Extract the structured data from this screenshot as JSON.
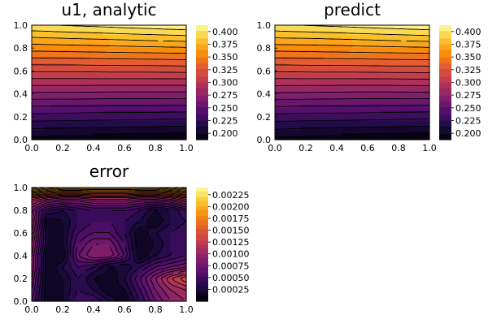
{
  "chart_data": [
    {
      "type": "heatmap",
      "subtype": "filled-contour",
      "title": "u1, analytic",
      "xlim": [
        0,
        1
      ],
      "ylim": [
        0,
        1
      ],
      "x_ticks": [
        "0.0",
        "0.2",
        "0.4",
        "0.6",
        "0.8",
        "1.0"
      ],
      "y_ticks": [
        "0.0",
        "0.2",
        "0.4",
        "0.6",
        "0.8",
        "1.0"
      ],
      "colorbar": {
        "range": [
          0.1875,
          0.4125
        ],
        "ticks": [
          0.2,
          0.225,
          0.25,
          0.275,
          0.3,
          0.325,
          0.35,
          0.375,
          0.4
        ],
        "tick_labels": [
          "0.200",
          "0.225",
          "0.250",
          "0.275",
          "0.300",
          "0.325",
          "0.350",
          "0.375",
          "0.400"
        ]
      },
      "contour_levels": [
        0.2,
        0.2125,
        0.225,
        0.2375,
        0.25,
        0.2625,
        0.275,
        0.2875,
        0.3,
        0.3125,
        0.325,
        0.3375,
        0.35,
        0.3625,
        0.375,
        0.3875,
        0.4
      ],
      "field": {
        "x": [
          0,
          0.25,
          0.5,
          0.75,
          1
        ],
        "y": [
          0,
          0.125,
          0.25,
          0.375,
          0.5,
          0.625,
          0.75,
          0.875,
          1
        ],
        "z": [
          [
            0.195,
            0.193,
            0.191,
            0.189,
            0.187
          ],
          [
            0.218,
            0.217,
            0.216,
            0.215,
            0.214
          ],
          [
            0.242,
            0.241,
            0.24,
            0.24,
            0.239
          ],
          [
            0.267,
            0.267,
            0.266,
            0.266,
            0.266
          ],
          [
            0.293,
            0.293,
            0.293,
            0.293,
            0.293
          ],
          [
            0.319,
            0.319,
            0.32,
            0.32,
            0.321
          ],
          [
            0.345,
            0.346,
            0.347,
            0.348,
            0.349
          ],
          [
            0.371,
            0.373,
            0.375,
            0.377,
            0.379
          ],
          [
            0.398,
            0.401,
            0.404,
            0.407,
            0.41
          ]
        ]
      }
    },
    {
      "type": "heatmap",
      "subtype": "filled-contour",
      "title": "predict",
      "xlim": [
        0,
        1
      ],
      "ylim": [
        0,
        1
      ],
      "x_ticks": [
        "0.0",
        "0.2",
        "0.4",
        "0.6",
        "0.8",
        "1.0"
      ],
      "y_ticks": [
        "0.0",
        "0.2",
        "0.4",
        "0.6",
        "0.8",
        "1.0"
      ],
      "colorbar": {
        "range": [
          0.1875,
          0.4125
        ],
        "ticks": [
          0.2,
          0.225,
          0.25,
          0.275,
          0.3,
          0.325,
          0.35,
          0.375,
          0.4
        ],
        "tick_labels": [
          "0.200",
          "0.225",
          "0.250",
          "0.275",
          "0.300",
          "0.325",
          "0.350",
          "0.375",
          "0.400"
        ]
      },
      "contour_levels": [
        0.2,
        0.2125,
        0.225,
        0.2375,
        0.25,
        0.2625,
        0.275,
        0.2875,
        0.3,
        0.3125,
        0.325,
        0.3375,
        0.35,
        0.3625,
        0.375,
        0.3875,
        0.4
      ],
      "field": {
        "x": [
          0,
          0.25,
          0.5,
          0.75,
          1
        ],
        "y": [
          0,
          0.125,
          0.25,
          0.375,
          0.5,
          0.625,
          0.75,
          0.875,
          1
        ],
        "z": [
          [
            0.196,
            0.194,
            0.191,
            0.189,
            0.187
          ],
          [
            0.219,
            0.217,
            0.216,
            0.215,
            0.214
          ],
          [
            0.242,
            0.241,
            0.241,
            0.24,
            0.239
          ],
          [
            0.268,
            0.267,
            0.266,
            0.266,
            0.266
          ],
          [
            0.293,
            0.293,
            0.293,
            0.293,
            0.294
          ],
          [
            0.319,
            0.32,
            0.32,
            0.321,
            0.321
          ],
          [
            0.345,
            0.346,
            0.347,
            0.348,
            0.349
          ],
          [
            0.372,
            0.373,
            0.375,
            0.377,
            0.379
          ],
          [
            0.398,
            0.401,
            0.404,
            0.407,
            0.41
          ]
        ]
      }
    },
    {
      "type": "heatmap",
      "subtype": "filled-contour",
      "title": "error",
      "xlim": [
        0,
        1
      ],
      "ylim": [
        0,
        1
      ],
      "x_ticks": [
        "0.0",
        "0.2",
        "0.4",
        "0.6",
        "0.8",
        "1.0"
      ],
      "y_ticks": [
        "0.0",
        "0.2",
        "0.4",
        "0.6",
        "0.8",
        "1.0"
      ],
      "colorbar": {
        "range": [
          0,
          0.0024
        ],
        "ticks": [
          0.00025,
          0.0005,
          0.00075,
          0.001,
          0.00125,
          0.0015,
          0.00175,
          0.002,
          0.00225
        ],
        "tick_labels": [
          "0.00025",
          "0.00050",
          "0.00075",
          "0.00100",
          "0.00125",
          "0.00150",
          "0.00175",
          "0.00200",
          "0.00225"
        ]
      },
      "contour_levels": [
        0.0001,
        0.0002,
        0.0003,
        0.0004,
        0.0005,
        0.0006,
        0.0007,
        0.0008,
        0.0009,
        0.001,
        0.0011,
        0.0012,
        0.0013,
        0.0014,
        0.0015,
        0.0016,
        0.0017,
        0.0018,
        0.0019,
        0.002,
        0.0021,
        0.0022,
        0.0023
      ],
      "field": {
        "x": [
          0,
          0.1,
          0.2,
          0.3,
          0.4,
          0.5,
          0.6,
          0.7,
          0.8,
          0.9,
          1
        ],
        "y": [
          0,
          0.1,
          0.2,
          0.3,
          0.4,
          0.5,
          0.6,
          0.7,
          0.8,
          0.9,
          1
        ],
        "z": [
          [
            0.0006,
            0.0001,
            0.0002,
            0.0005,
            0.0005,
            0.0003,
            0.0001,
            0.0004,
            0.0007,
            0.0009,
            0.001
          ],
          [
            0.0007,
            0.0001,
            0.0002,
            0.0004,
            0.0003,
            0.0001,
            0.0002,
            0.0005,
            0.0008,
            0.001,
            0.0011
          ],
          [
            0.0008,
            0.0001,
            0.0002,
            0.0004,
            0.0002,
            0.0001,
            0.0003,
            0.0006,
            0.0009,
            0.0012,
            0.0014
          ],
          [
            0.0009,
            0.0001,
            0.0003,
            0.0005,
            0.0004,
            0.0002,
            0.0002,
            0.0004,
            0.0006,
            0.0007,
            0.0008
          ],
          [
            0.0009,
            0.0001,
            0.0001,
            0.0007,
            0.0009,
            0.0009,
            0.0006,
            0.0001,
            0.0003,
            0.0004,
            0.0005
          ],
          [
            0.001,
            0.0002,
            0.0002,
            0.0006,
            0.0008,
            0.0008,
            0.0005,
            0.0001,
            0.0002,
            0.0004,
            0.0005
          ],
          [
            0.0011,
            0.0002,
            0.0002,
            0.0005,
            0.0006,
            0.0006,
            0.0004,
            0.0001,
            0.0003,
            0.0004,
            0.0005
          ],
          [
            0.001,
            0.0001,
            0.0002,
            0.0004,
            0.0005,
            0.0005,
            0.0004,
            0.0003,
            0.0001,
            0.0003,
            0.0004
          ],
          [
            0.0008,
            0.0004,
            0.0003,
            0.0004,
            0.0005,
            0.0005,
            0.0005,
            0.0004,
            0.0002,
            0.0003,
            0.0005
          ],
          [
            0.0012,
            0.001,
            0.0009,
            0.0009,
            0.001,
            0.001,
            0.001,
            0.0009,
            0.0009,
            0.001,
            0.0012
          ],
          [
            0.0024,
            0.0022,
            0.0021,
            0.0021,
            0.0021,
            0.0021,
            0.0021,
            0.0021,
            0.0021,
            0.0022,
            0.0024
          ]
        ]
      }
    }
  ]
}
